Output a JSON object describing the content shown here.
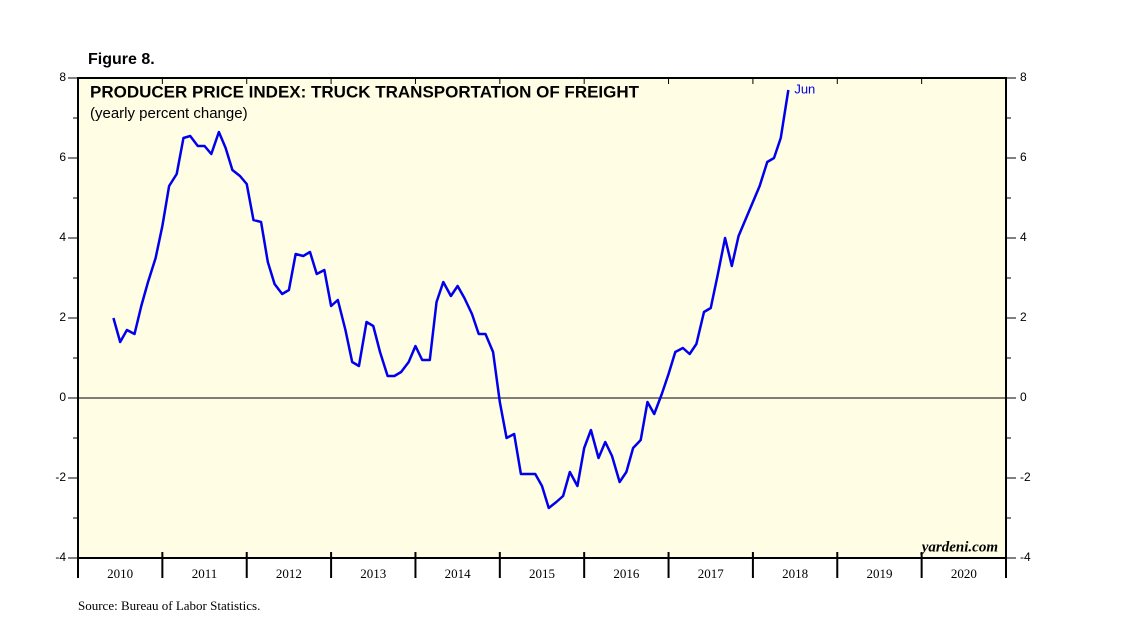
{
  "chart_data": {
    "type": "line",
    "figure_label": "Figure 8.",
    "title": "PRODUCER PRICE INDEX: TRUCK TRANSPORTATION OF FREIGHT",
    "subtitle": "(yearly percent change)",
    "annotation": "Jun",
    "watermark": "yardeni.com",
    "source": "Source: Bureau of Labor Statistics.",
    "xlim": [
      2010,
      2021
    ],
    "xticks": [
      2010,
      2011,
      2012,
      2013,
      2014,
      2015,
      2016,
      2017,
      2018,
      2019,
      2020,
      2021
    ],
    "xtick_labels": [
      {
        "value": 2010.5,
        "label": "2010"
      },
      {
        "value": 2011.5,
        "label": "2011"
      },
      {
        "value": 2012.5,
        "label": "2012"
      },
      {
        "value": 2013.5,
        "label": "2013"
      },
      {
        "value": 2014.5,
        "label": "2014"
      },
      {
        "value": 2015.5,
        "label": "2015"
      },
      {
        "value": 2016.5,
        "label": "2016"
      },
      {
        "value": 2017.5,
        "label": "2017"
      },
      {
        "value": 2018.5,
        "label": "2018"
      },
      {
        "value": 2019.5,
        "label": "2019"
      },
      {
        "value": 2020.5,
        "label": "2020"
      }
    ],
    "ylim": [
      -4,
      8
    ],
    "yticks": [
      -4,
      -2,
      0,
      2,
      4,
      6,
      8
    ],
    "yminor_ticks": [
      -3,
      -1,
      1,
      3,
      5,
      7
    ],
    "zero_line": true,
    "background": "#fffde3",
    "series": [
      {
        "name": "PPI truck transportation of freight",
        "color": "#0000ee",
        "x": [
          2010.42,
          2010.5,
          2010.58,
          2010.67,
          2010.75,
          2010.83,
          2010.92,
          2011.0,
          2011.08,
          2011.17,
          2011.25,
          2011.33,
          2011.42,
          2011.5,
          2011.58,
          2011.67,
          2011.75,
          2011.83,
          2011.92,
          2012.0,
          2012.08,
          2012.17,
          2012.25,
          2012.33,
          2012.42,
          2012.5,
          2012.58,
          2012.67,
          2012.75,
          2012.83,
          2012.92,
          2013.0,
          2013.08,
          2013.17,
          2013.25,
          2013.33,
          2013.42,
          2013.5,
          2013.58,
          2013.67,
          2013.75,
          2013.83,
          2013.92,
          2014.0,
          2014.08,
          2014.17,
          2014.25,
          2014.33,
          2014.42,
          2014.5,
          2014.58,
          2014.67,
          2014.75,
          2014.83,
          2014.92,
          2015.0,
          2015.08,
          2015.17,
          2015.25,
          2015.33,
          2015.42,
          2015.5,
          2015.58,
          2015.67,
          2015.75,
          2015.83,
          2015.92,
          2016.0,
          2016.08,
          2016.17,
          2016.25,
          2016.33,
          2016.42,
          2016.5,
          2016.58,
          2016.67,
          2016.75,
          2016.83,
          2016.92,
          2017.0,
          2017.08,
          2017.17,
          2017.25,
          2017.33,
          2017.42,
          2017.5,
          2017.58,
          2017.67,
          2017.75,
          2017.83,
          2017.92,
          2018.0,
          2018.08,
          2018.17,
          2018.25,
          2018.33,
          2018.42
        ],
        "values": [
          2.0,
          1.4,
          1.7,
          1.6,
          2.3,
          2.9,
          3.5,
          4.3,
          5.3,
          5.6,
          6.5,
          6.55,
          6.3,
          6.3,
          6.1,
          6.65,
          6.25,
          5.7,
          5.55,
          5.35,
          4.45,
          4.4,
          3.4,
          2.85,
          2.6,
          2.7,
          3.6,
          3.55,
          3.65,
          3.1,
          3.2,
          2.3,
          2.45,
          1.7,
          0.9,
          0.8,
          1.9,
          1.8,
          1.15,
          0.55,
          0.55,
          0.65,
          0.9,
          1.3,
          0.95,
          0.95,
          2.4,
          2.9,
          2.55,
          2.8,
          2.5,
          2.1,
          1.6,
          1.6,
          1.15,
          -0.1,
          -1.0,
          -0.9,
          -1.9,
          -1.9,
          -1.9,
          -2.2,
          -2.75,
          -2.6,
          -2.45,
          -1.85,
          -2.2,
          -1.25,
          -0.8,
          -1.5,
          -1.1,
          -1.45,
          -2.1,
          -1.85,
          -1.25,
          -1.05,
          -0.1,
          -0.4,
          0.1,
          0.6,
          1.15,
          1.25,
          1.1,
          1.35,
          2.15,
          2.25,
          3.05,
          4.0,
          3.3,
          4.05,
          4.5,
          4.9,
          5.3,
          5.9,
          6.0,
          6.5,
          7.7
        ]
      }
    ]
  }
}
